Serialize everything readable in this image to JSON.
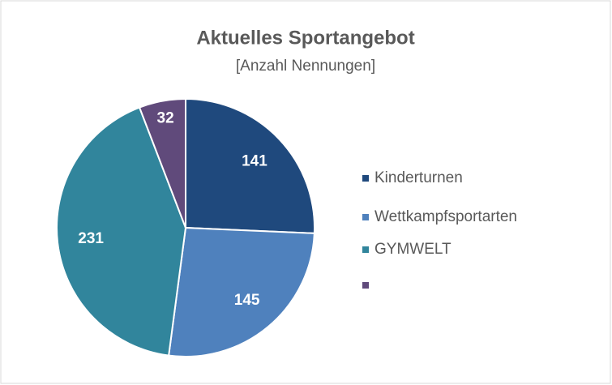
{
  "chart_data": {
    "type": "pie",
    "title": "Aktuelles Sportangebot",
    "subtitle": "[Anzahl Nennungen]",
    "categories": [
      "Kinderturnen",
      "Wettkampfsportarten",
      "GYMWELT",
      null
    ],
    "values": [
      141,
      145,
      231,
      32
    ],
    "colors": [
      "#1f497d",
      "#4f81bd",
      "#31859c",
      "#604a7b"
    ],
    "legend": "right"
  }
}
